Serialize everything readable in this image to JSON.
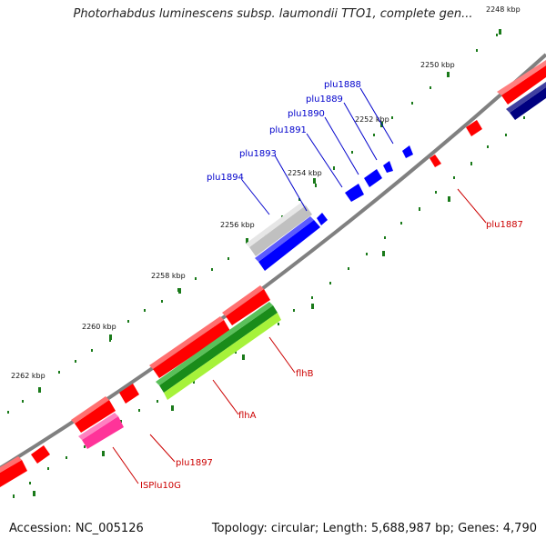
{
  "title": "Photorhabdus luminescens subsp. laumondii TTO1, complete gen...",
  "footer": {
    "accession": "Accession: NC_005126",
    "summary": "Topology: circular; Length: 5,688,987 bp; Genes: 4,790"
  },
  "colors": {
    "backbone": "#808080",
    "forward_gene": "#ff0000",
    "blue_gene": "#0000ff",
    "navy_gene": "#000080",
    "grey_gene": "#c0c0c0",
    "green_gene": "#1a8c1a",
    "lime_gene": "#a6f23a",
    "pink_gene": "#ff33aa",
    "tick_green": "#1a7a1a"
  },
  "scale_labels": [
    "2248 kbp",
    "2250 kbp",
    "2252 kbp",
    "2254 kbp",
    "2256 kbp",
    "2258 kbp",
    "2260 kbp",
    "2262 kbp"
  ],
  "gene_labels": {
    "blue": [
      "plu1888",
      "plu1889",
      "plu1890",
      "plu1891",
      "plu1893",
      "plu1894"
    ],
    "red": [
      "plu1887",
      "flhB",
      "flhA",
      "plu1897",
      "ISPlu10G"
    ]
  }
}
